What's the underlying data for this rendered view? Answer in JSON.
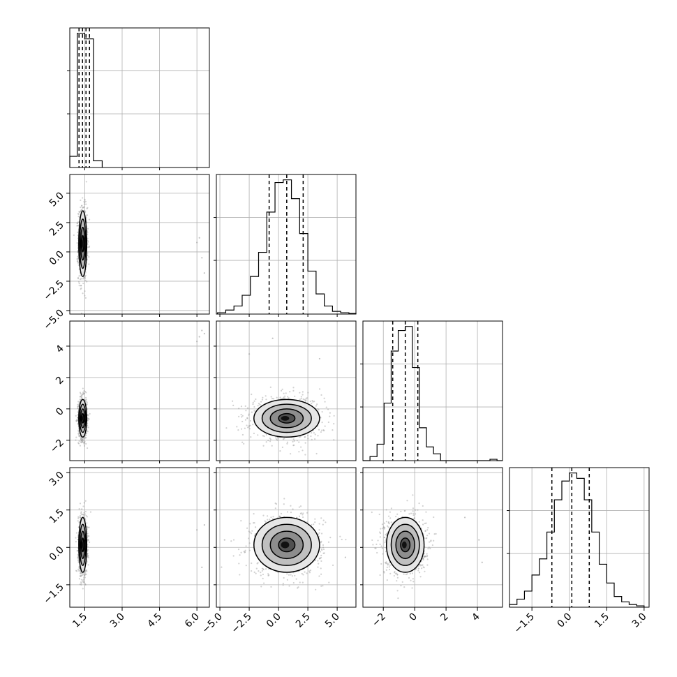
{
  "chart_data": {
    "type": "corner",
    "n_params": 4,
    "colors": {
      "line": "#000000",
      "grid": "#b0b0b0",
      "points": "#9a9a9a",
      "background": "#ffffff"
    },
    "grid": true,
    "axis_ranges": [
      [
        0.9,
        6.5
      ],
      [
        -5.3,
        6.6
      ],
      [
        -3.3,
        5.6
      ],
      [
        -2.4,
        3.2
      ]
    ],
    "ticks": [
      {
        "values": [
          1.5,
          3.0,
          4.5,
          6.0
        ],
        "labels": [
          "1.5",
          "3.0",
          "4.5",
          "6.0"
        ]
      },
      {
        "values": [
          -5.0,
          -2.5,
          0.0,
          2.5,
          5.0
        ],
        "labels": [
          "−5.0",
          "−2.5",
          "0.0",
          "2.5",
          "5.0"
        ]
      },
      {
        "values": [
          -2,
          0,
          2,
          4
        ],
        "labels": [
          "−2",
          "0",
          "2",
          "4"
        ]
      },
      {
        "values": [
          -1.5,
          0.0,
          1.5,
          3.0
        ],
        "labels": [
          "−1.5",
          "0.0",
          "1.5",
          "3.0"
        ]
      }
    ],
    "diagonal_histograms": [
      {
        "param": 0,
        "bin_edges": [
          0.9,
          1.2,
          1.5,
          1.85,
          2.2
        ],
        "counts": [
          0.1,
          1.2,
          1.15,
          0.06
        ],
        "quantiles": [
          1.27,
          1.41,
          1.55,
          1.69
        ]
      },
      {
        "param": 1,
        "bin_edges": [
          -5.2,
          -4.5,
          -3.8,
          -3.1,
          -2.4,
          -1.7,
          -1.0,
          -0.3,
          0.4,
          1.1,
          1.8,
          2.5,
          3.2,
          3.9,
          4.6,
          5.3,
          6.0,
          6.6
        ],
        "counts": [
          0.01,
          0.03,
          0.06,
          0.14,
          0.28,
          0.46,
          0.76,
          0.98,
          1.0,
          0.86,
          0.6,
          0.32,
          0.15,
          0.06,
          0.02,
          0.01,
          0.005
        ],
        "quantiles": [
          -0.8,
          0.7,
          2.1
        ]
      },
      {
        "param": 2,
        "bin_edges": [
          -3.3,
          -2.85,
          -2.4,
          -1.95,
          -1.5,
          -1.05,
          -0.6,
          -0.15,
          0.3,
          0.75,
          1.2,
          1.65,
          2.1,
          2.55,
          3.0,
          3.45,
          3.9,
          4.35,
          4.8,
          5.25,
          5.6
        ],
        "counts": [
          0.0,
          0.03,
          0.12,
          0.42,
          0.8,
          0.95,
          0.98,
          0.68,
          0.24,
          0.1,
          0.05,
          0.0,
          0.0,
          0.0,
          0.0,
          0.0,
          0.0,
          0.0,
          0.01,
          0.0
        ],
        "quantiles": [
          -1.4,
          -0.6,
          0.2
        ]
      },
      {
        "param": 3,
        "bin_edges": [
          -2.4,
          -2.1,
          -1.8,
          -1.5,
          -1.2,
          -0.9,
          -0.6,
          -0.3,
          0.0,
          0.3,
          0.6,
          0.9,
          1.2,
          1.5,
          1.8,
          2.1,
          2.4,
          2.7,
          3.0
        ],
        "counts": [
          0.02,
          0.06,
          0.12,
          0.24,
          0.36,
          0.56,
          0.8,
          0.94,
          1.0,
          0.96,
          0.8,
          0.56,
          0.32,
          0.18,
          0.08,
          0.04,
          0.02,
          0.01
        ],
        "quantiles": [
          -0.7,
          0.1,
          0.8
        ]
      }
    ],
    "scatter_panels": [
      {
        "x": 0,
        "y": 1,
        "mean": [
          1.42,
          0.7
        ],
        "sd": [
          0.08,
          1.4
        ],
        "outliers": [
          [
            6.0,
            0.8
          ],
          [
            6.2,
            -0.5
          ],
          [
            6.1,
            1.2
          ],
          [
            6.3,
            -1.8
          ]
        ]
      },
      {
        "x": 0,
        "y": 2,
        "mean": [
          1.42,
          -0.6
        ],
        "sd": [
          0.08,
          0.6
        ],
        "outliers": [
          [
            6.1,
            4.6
          ],
          [
            6.2,
            5.0
          ],
          [
            6.0,
            4.3
          ],
          [
            6.3,
            4.8
          ]
        ]
      },
      {
        "x": 0,
        "y": 3,
        "mean": [
          1.42,
          0.1
        ],
        "sd": [
          0.08,
          0.55
        ],
        "outliers": [
          [
            6.0,
            0.7
          ],
          [
            6.2,
            -0.8
          ],
          [
            6.3,
            0.9
          ]
        ]
      },
      {
        "x": 1,
        "y": 2,
        "mean": [
          0.7,
          -0.6
        ],
        "sd": [
          1.4,
          0.6
        ],
        "outliers": [
          [
            -2.5,
            3.5
          ],
          [
            3.5,
            3.2
          ],
          [
            -0.5,
            4.5
          ]
        ]
      },
      {
        "x": 1,
        "y": 3,
        "mean": [
          0.7,
          0.1
        ],
        "sd": [
          1.4,
          0.55
        ],
        "outliers": [
          [
            -4.6,
            0.3
          ],
          [
            5.7,
            -0.4
          ]
        ]
      },
      {
        "x": 2,
        "y": 3,
        "mean": [
          -0.6,
          0.1
        ],
        "sd": [
          0.6,
          0.55
        ],
        "outliers": [
          [
            4.1,
            0.3
          ],
          [
            4.3,
            -0.6
          ],
          [
            3.2,
            1.2
          ]
        ]
      }
    ],
    "contour_levels_sigma": [
      0.5,
      1.0,
      1.5,
      2.0
    ]
  }
}
